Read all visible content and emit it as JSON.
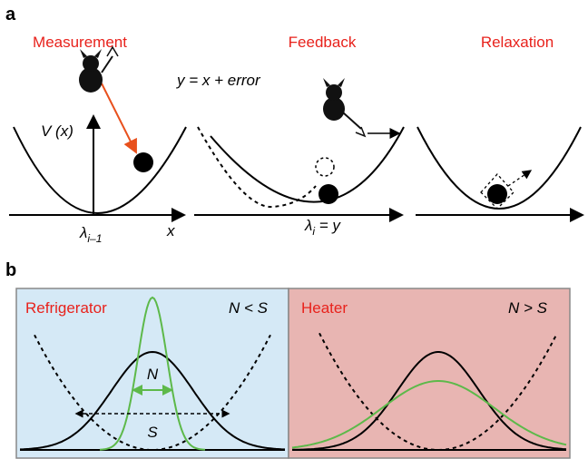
{
  "panel_a": {
    "label": "a",
    "steps": [
      "Measurement",
      "Feedback",
      "Relaxation"
    ],
    "equation": "y = x + error",
    "potential_label": "V (x)",
    "x_axis_label": "x",
    "lambda_prev": {
      "symbol": "λ",
      "subscript": "i–1"
    },
    "lambda_new": {
      "symbol": "λ",
      "subscript": "i",
      "rest": " = y"
    }
  },
  "panel_b": {
    "label": "b",
    "left": {
      "title": "Refrigerator",
      "relation": "N < S",
      "width_labels": [
        "N",
        "S"
      ]
    },
    "right": {
      "title": "Heater",
      "relation": "N > S"
    }
  }
}
